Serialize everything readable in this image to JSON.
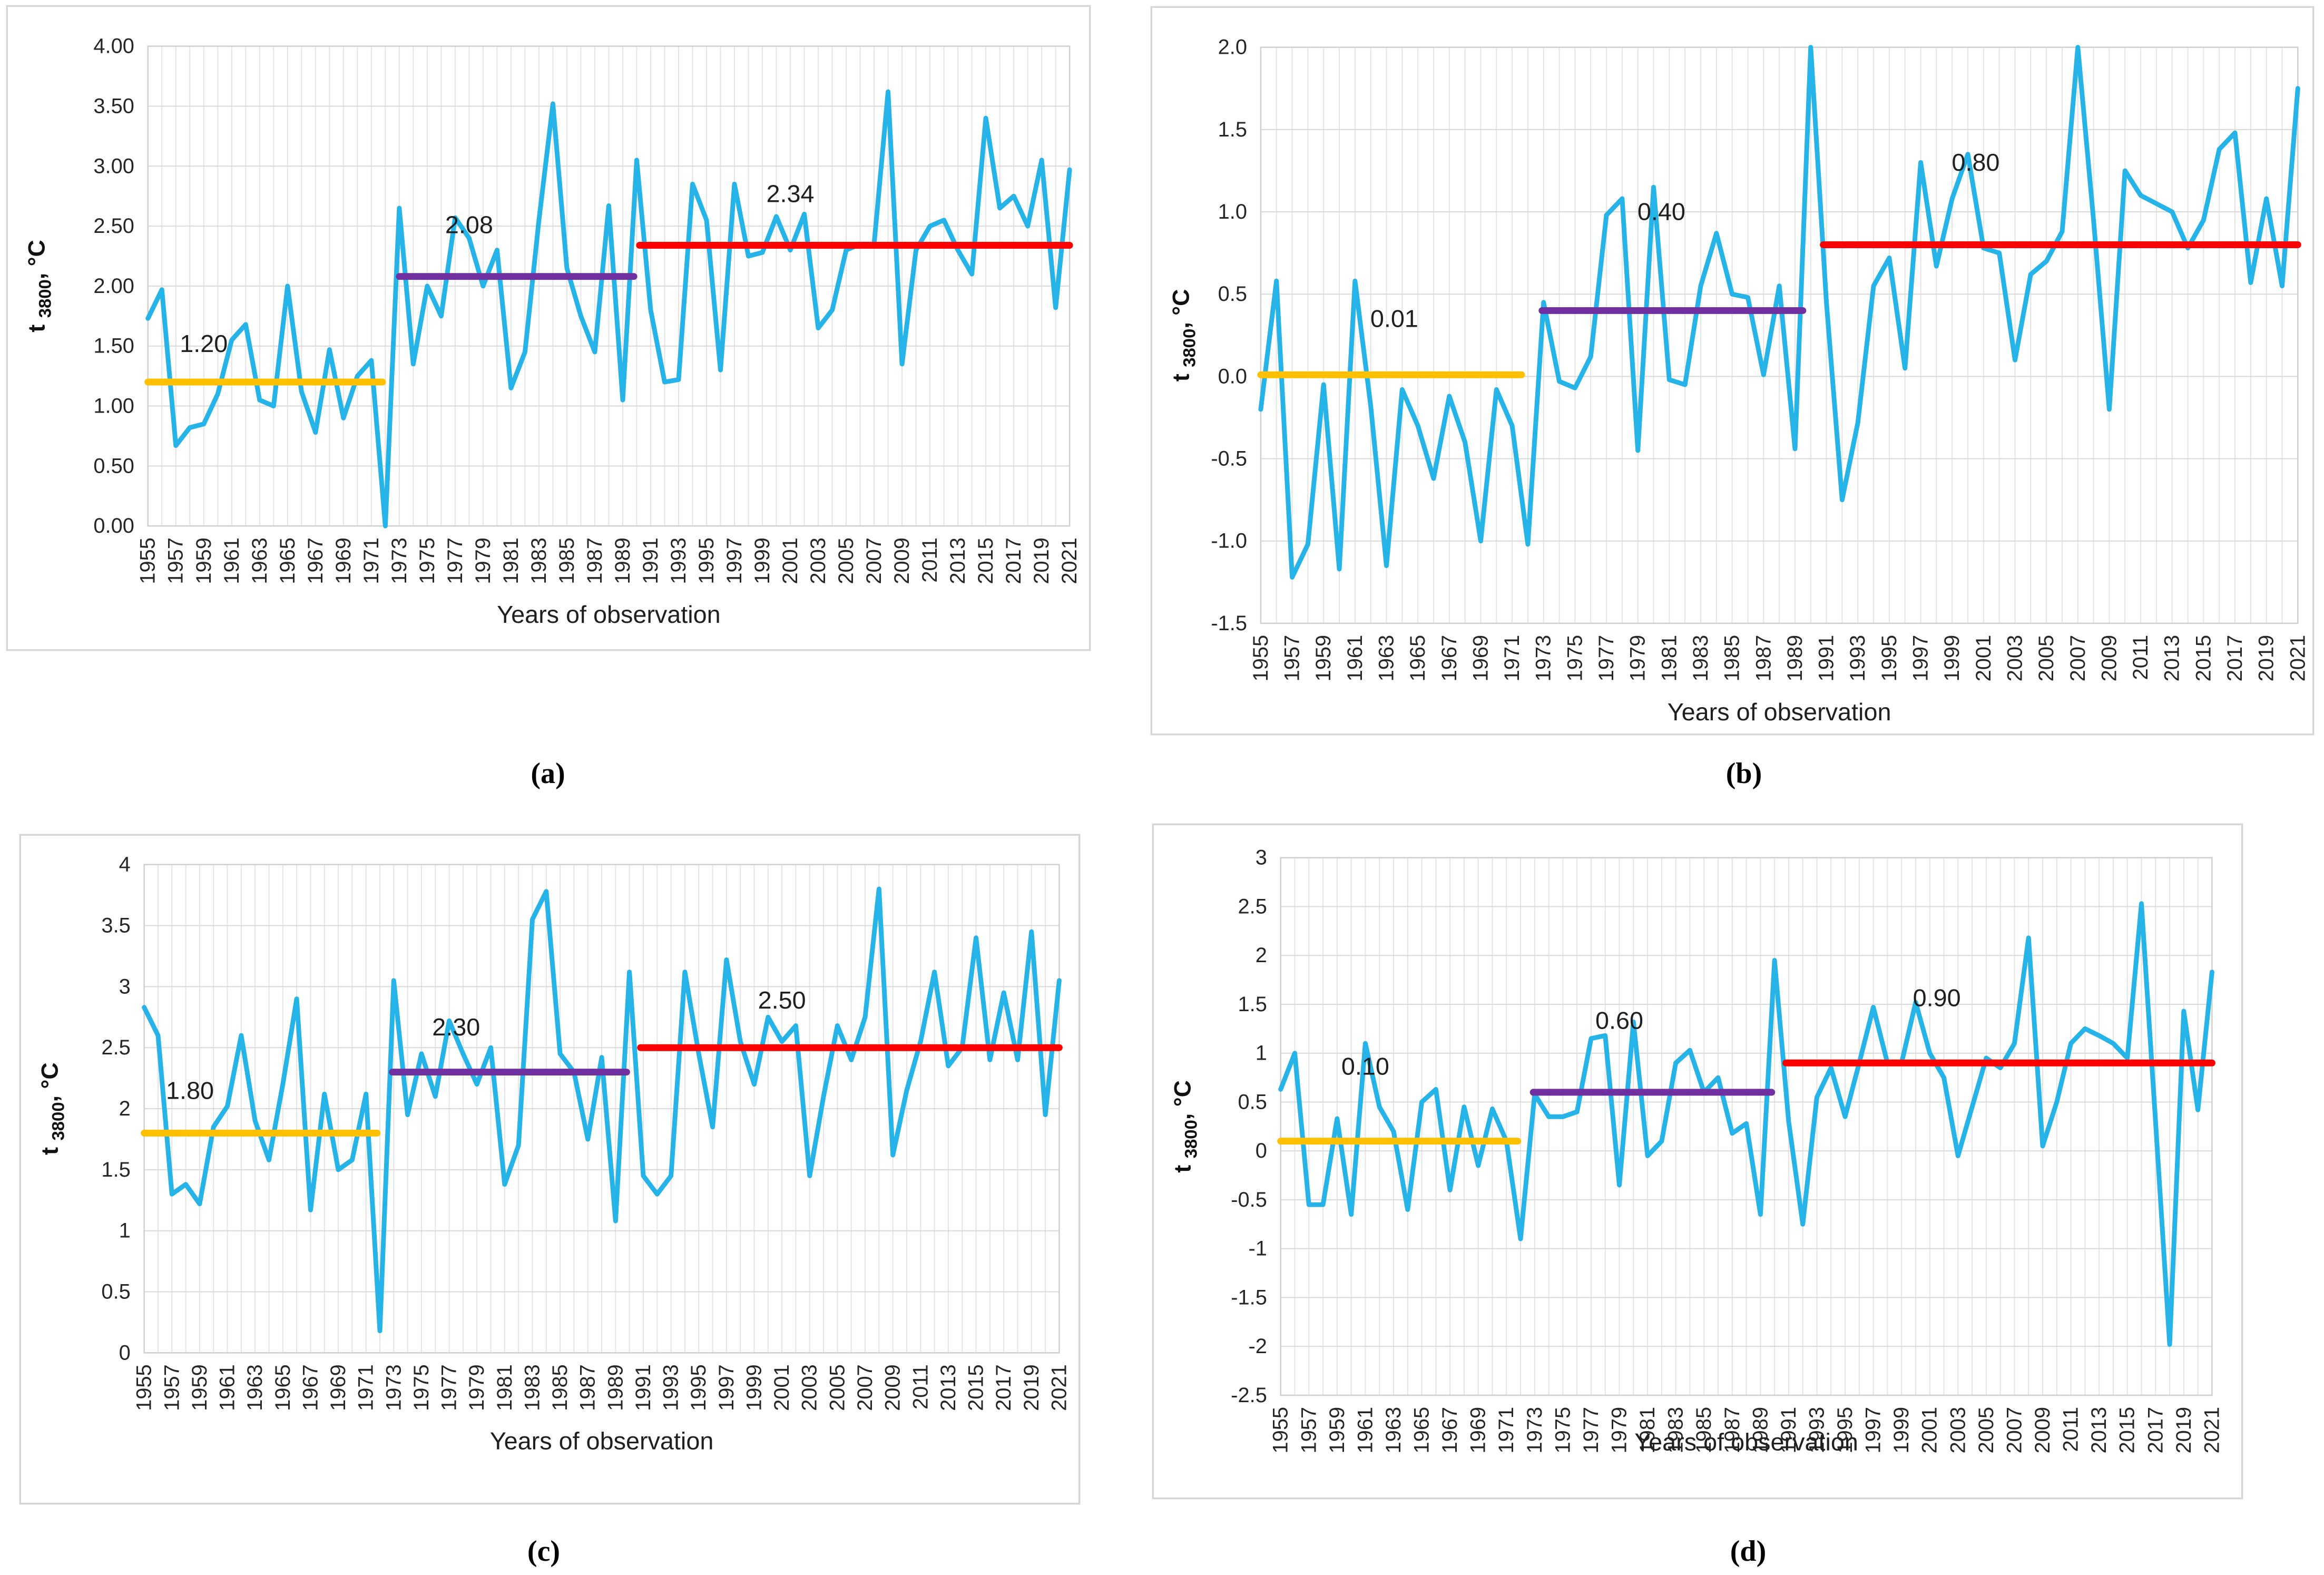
{
  "colors": {
    "series": "#25b3e8",
    "orange": "#ffc000",
    "purple": "#7030a0",
    "red": "#ff0000",
    "grid_vertical": "#e4e4e4",
    "grid_horizontal": "#d9d9d9",
    "plot_border": "#cfcfcf",
    "panel_border": "#d6d4d4",
    "text": "#262626",
    "label_text": "#1f1f1f"
  },
  "axis": {
    "x_title": "Years of observation",
    "y_title_main": "t",
    "y_title_sub": "3800",
    "y_title_unit": ", °C",
    "years_start": 1955,
    "years_end": 2021,
    "x_tick_labels": [
      "1955",
      "1957",
      "1959",
      "1961",
      "1963",
      "1965",
      "1967",
      "1969",
      "1971",
      "1973",
      "1975",
      "1977",
      "1979",
      "1981",
      "1983",
      "1985",
      "1987",
      "1989",
      "1991",
      "1993",
      "1995",
      "1997",
      "1999",
      "2001",
      "2003",
      "2005",
      "2007",
      "2009",
      "2011",
      "2013",
      "2015",
      "2017",
      "2019",
      "2021"
    ]
  },
  "chart_data": [
    {
      "id": "a",
      "type": "line",
      "caption": "(a)",
      "grid": true,
      "legend": "none",
      "y_min": 0,
      "y_max": 4,
      "y_tick_labels": [
        "0.00",
        "0.50",
        "1.00",
        "1.50",
        "2.00",
        "2.50",
        "3.00",
        "3.50",
        "4.00"
      ],
      "y_tick_values": [
        0,
        0.5,
        1,
        1.5,
        2,
        2.5,
        3,
        3.5,
        4
      ],
      "values": [
        1.73,
        1.97,
        0.67,
        0.82,
        0.85,
        1.1,
        1.55,
        1.68,
        1.05,
        1.0,
        2.0,
        1.12,
        0.78,
        1.47,
        0.9,
        1.25,
        1.38,
        0.0,
        2.65,
        1.35,
        2.0,
        1.75,
        2.57,
        2.4,
        2.0,
        2.3,
        1.15,
        1.45,
        2.55,
        3.52,
        2.15,
        1.75,
        1.45,
        2.67,
        1.05,
        3.05,
        1.8,
        1.2,
        1.22,
        2.85,
        2.55,
        1.3,
        2.85,
        2.25,
        2.28,
        2.58,
        2.3,
        2.6,
        1.65,
        1.8,
        2.3,
        2.35,
        2.35,
        3.62,
        1.35,
        2.3,
        2.5,
        2.55,
        2.3,
        2.1,
        3.4,
        2.65,
        2.75,
        2.5,
        3.05,
        1.82,
        2.97
      ],
      "segments": [
        {
          "label": "1.20",
          "value": 1.2,
          "year_from": 1955,
          "year_to": 1971.8,
          "color": "orange",
          "label_year": 1959,
          "label_v": 1.45
        },
        {
          "label": "2.08",
          "value": 2.08,
          "year_from": 1973,
          "year_to": 1989.8,
          "color": "purple",
          "label_year": 1978,
          "label_v": 2.44
        },
        {
          "label": "2.34",
          "value": 2.34,
          "year_from": 1990.2,
          "year_to": 2021,
          "color": "red",
          "label_year": 2001,
          "label_v": 2.7
        }
      ]
    },
    {
      "id": "b",
      "type": "line",
      "caption": "(b)",
      "grid": true,
      "legend": "none",
      "y_min": -1.5,
      "y_max": 2,
      "y_tick_labels": [
        "-1.5",
        "-1.0",
        "-0.5",
        "0.0",
        "0.5",
        "1.0",
        "1.5",
        "2.0"
      ],
      "y_tick_values": [
        -1.5,
        -1,
        -0.5,
        0,
        0.5,
        1,
        1.5,
        2
      ],
      "values": [
        -0.2,
        0.58,
        -1.22,
        -1.02,
        -0.05,
        -1.17,
        0.58,
        -0.18,
        -1.15,
        -0.08,
        -0.3,
        -0.62,
        -0.12,
        -0.4,
        -1.0,
        -0.08,
        -0.3,
        -1.02,
        0.45,
        -0.03,
        -0.07,
        0.12,
        0.98,
        1.08,
        -0.45,
        1.15,
        -0.02,
        -0.05,
        0.55,
        0.87,
        0.5,
        0.48,
        0.01,
        0.55,
        -0.44,
        2.0,
        0.45,
        -0.75,
        -0.28,
        0.55,
        0.72,
        0.05,
        1.3,
        0.67,
        1.08,
        1.35,
        0.78,
        0.75,
        0.1,
        0.62,
        0.7,
        0.88,
        2.0,
        0.95,
        -0.2,
        1.25,
        1.1,
        1.05,
        1.0,
        0.78,
        0.95,
        1.38,
        1.48,
        0.57,
        1.08,
        0.55,
        1.75
      ],
      "segments": [
        {
          "label": "0.01",
          "value": 0.01,
          "year_from": 1955,
          "year_to": 1971.6,
          "color": "orange",
          "label_year": 1963.5,
          "label_v": 0.3
        },
        {
          "label": "0.40",
          "value": 0.4,
          "year_from": 1972.9,
          "year_to": 1989.5,
          "color": "purple",
          "label_year": 1980.5,
          "label_v": 0.95
        },
        {
          "label": "0.80",
          "value": 0.8,
          "year_from": 1990.8,
          "year_to": 2021,
          "color": "red",
          "label_year": 2000.5,
          "label_v": 1.25
        }
      ]
    },
    {
      "id": "c",
      "type": "line",
      "caption": "(c)",
      "grid": true,
      "legend": "none",
      "y_min": 0,
      "y_max": 4,
      "y_tick_labels": [
        "0",
        "0.5",
        "1",
        "1.5",
        "2",
        "2.5",
        "3",
        "3.5",
        "4"
      ],
      "y_tick_values": [
        0,
        0.5,
        1,
        1.5,
        2,
        2.5,
        3,
        3.5,
        4
      ],
      "values": [
        2.83,
        2.6,
        1.3,
        1.38,
        1.22,
        1.85,
        2.02,
        2.6,
        1.9,
        1.58,
        2.2,
        2.9,
        1.17,
        2.12,
        1.5,
        1.58,
        2.12,
        0.18,
        3.05,
        1.95,
        2.45,
        2.1,
        2.72,
        2.45,
        2.2,
        2.5,
        1.38,
        1.7,
        3.55,
        3.78,
        2.45,
        2.3,
        1.75,
        2.42,
        1.08,
        3.12,
        1.45,
        1.3,
        1.45,
        3.12,
        2.45,
        1.85,
        3.22,
        2.55,
        2.2,
        2.75,
        2.55,
        2.68,
        1.45,
        2.1,
        2.68,
        2.4,
        2.75,
        3.8,
        1.62,
        2.15,
        2.55,
        3.12,
        2.35,
        2.5,
        3.4,
        2.4,
        2.95,
        2.4,
        3.45,
        1.95,
        3.05
      ],
      "segments": [
        {
          "label": "1.80",
          "value": 1.8,
          "year_from": 1955,
          "year_to": 1971.8,
          "color": "orange",
          "label_year": 1958.3,
          "label_v": 2.08
        },
        {
          "label": "2.30",
          "value": 2.3,
          "year_from": 1972.9,
          "year_to": 1989.8,
          "color": "purple",
          "label_year": 1977.5,
          "label_v": 2.6
        },
        {
          "label": "2.50",
          "value": 2.5,
          "year_from": 1990.8,
          "year_to": 2021,
          "color": "red",
          "label_year": 2001,
          "label_v": 2.82
        }
      ]
    },
    {
      "id": "d",
      "type": "line",
      "caption": "(d)",
      "grid": true,
      "legend": "none",
      "y_min": -2.5,
      "y_max": 3,
      "y_tick_labels": [
        "-2.5",
        "-2",
        "-1.5",
        "-1",
        "-0.5",
        "0",
        "0.5",
        "1",
        "1.5",
        "2",
        "2.5",
        "3"
      ],
      "y_tick_values": [
        -2.5,
        -2,
        -1.5,
        -1,
        -0.5,
        0,
        0.5,
        1,
        1.5,
        2,
        2.5,
        3
      ],
      "values": [
        0.63,
        1.0,
        -0.55,
        -0.55,
        0.33,
        -0.65,
        1.1,
        0.45,
        0.2,
        -0.6,
        0.5,
        0.63,
        -0.4,
        0.45,
        -0.15,
        0.43,
        0.1,
        -0.9,
        0.58,
        0.35,
        0.35,
        0.4,
        1.15,
        1.18,
        -0.35,
        1.32,
        -0.05,
        0.1,
        0.9,
        1.03,
        0.6,
        0.75,
        0.18,
        0.28,
        -0.65,
        1.95,
        0.3,
        -0.75,
        0.55,
        0.85,
        0.35,
        0.9,
        1.47,
        0.9,
        0.9,
        1.52,
        1.0,
        0.75,
        -0.05,
        0.45,
        0.95,
        0.85,
        1.1,
        2.18,
        0.05,
        0.5,
        1.1,
        1.25,
        1.18,
        1.1,
        0.95,
        2.53,
        0.3,
        -1.98,
        1.43,
        0.42,
        1.83
      ],
      "segments": [
        {
          "label": "0.10",
          "value": 0.1,
          "year_from": 1955,
          "year_to": 1971.8,
          "color": "orange",
          "label_year": 1961,
          "label_v": 0.78
        },
        {
          "label": "0.60",
          "value": 0.6,
          "year_from": 1972.9,
          "year_to": 1989.8,
          "color": "purple",
          "label_year": 1979,
          "label_v": 1.25
        },
        {
          "label": "0.90",
          "value": 0.9,
          "year_from": 1990.8,
          "year_to": 2021,
          "color": "red",
          "label_year": 2001.5,
          "label_v": 1.48
        }
      ]
    }
  ]
}
